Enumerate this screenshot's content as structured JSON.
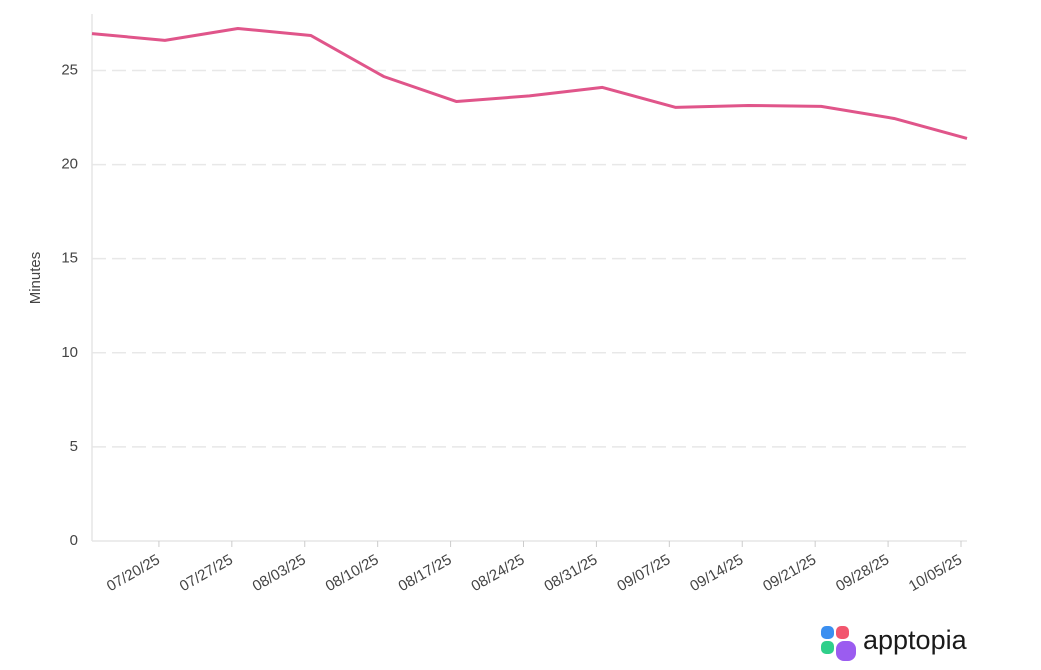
{
  "chart_data": {
    "type": "line",
    "y_label": "Minutes",
    "categories": [
      null,
      "07/20/25",
      "07/27/25",
      "08/03/25",
      "08/10/25",
      "08/17/25",
      "08/24/25",
      "08/31/25",
      "09/07/25",
      "09/14/25",
      "09/21/25",
      "09/28/25",
      "10/05/25"
    ],
    "series": [
      {
        "name": "Minutes",
        "color": "#e0558a",
        "values": [
          26.96,
          26.6,
          27.23,
          26.86,
          24.68,
          23.35,
          23.65,
          24.1,
          23.04,
          23.14,
          23.09,
          22.45,
          21.39
        ]
      }
    ],
    "ylim": [
      0,
      28
    ],
    "yticks": [
      0,
      5,
      10,
      15,
      20,
      25
    ],
    "grid": true,
    "brand": "apptopia"
  }
}
